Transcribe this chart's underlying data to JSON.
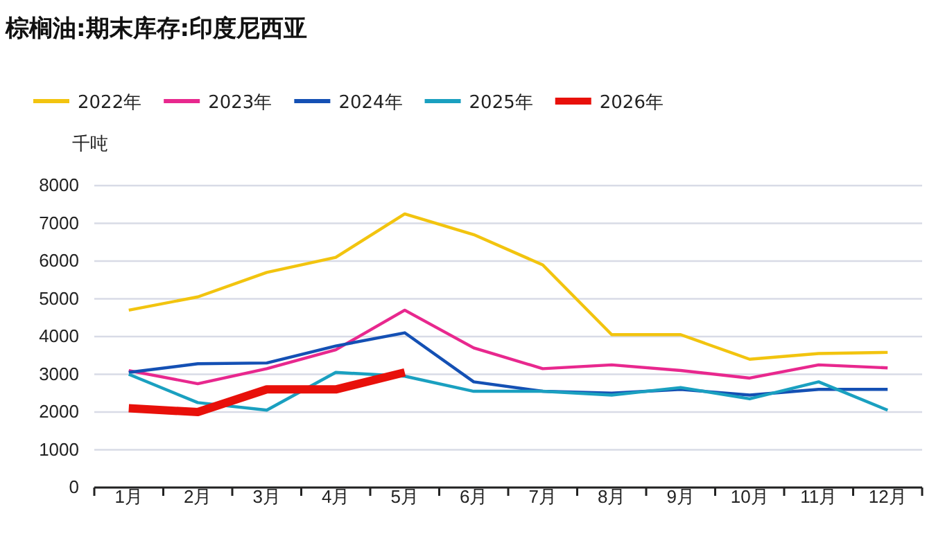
{
  "chart_data": {
    "type": "line",
    "title": "棕榈油:期末库存:印度尼西亚",
    "ylabel": "千吨",
    "categories": [
      "1月",
      "2月",
      "3月",
      "4月",
      "5月",
      "6月",
      "7月",
      "8月",
      "9月",
      "10月",
      "11月",
      "12月"
    ],
    "series": [
      {
        "name": "2022年",
        "color": "#f2c40f",
        "values": [
          4700,
          5050,
          5700,
          6100,
          7250,
          6700,
          5900,
          4050,
          4050,
          3400,
          3550,
          3580
        ]
      },
      {
        "name": "2023年",
        "color": "#e8288e",
        "values": [
          3100,
          2750,
          3150,
          3650,
          4700,
          3700,
          3150,
          3250,
          3100,
          2900,
          3250,
          3170
        ]
      },
      {
        "name": "2024年",
        "color": "#1450b4",
        "values": [
          3050,
          3280,
          3300,
          3750,
          4100,
          2800,
          2550,
          2500,
          2600,
          2450,
          2600,
          2600
        ]
      },
      {
        "name": "2025年",
        "color": "#1aa0c0",
        "values": [
          3000,
          2250,
          2050,
          3050,
          2950,
          2550,
          2550,
          2450,
          2650,
          2350,
          2800,
          2050
        ]
      },
      {
        "name": "2026年",
        "color": "#e8100a",
        "values": [
          2100,
          2000,
          2600,
          2600,
          3050,
          null,
          null,
          null,
          null,
          null,
          null,
          null
        ]
      }
    ],
    "ylim": [
      0,
      8000
    ],
    "yticks": [
      0,
      1000,
      2000,
      3000,
      4000,
      5000,
      6000,
      7000,
      8000
    ],
    "grid": "y",
    "legend": "top left",
    "line_style": "solid",
    "marker": "none"
  }
}
